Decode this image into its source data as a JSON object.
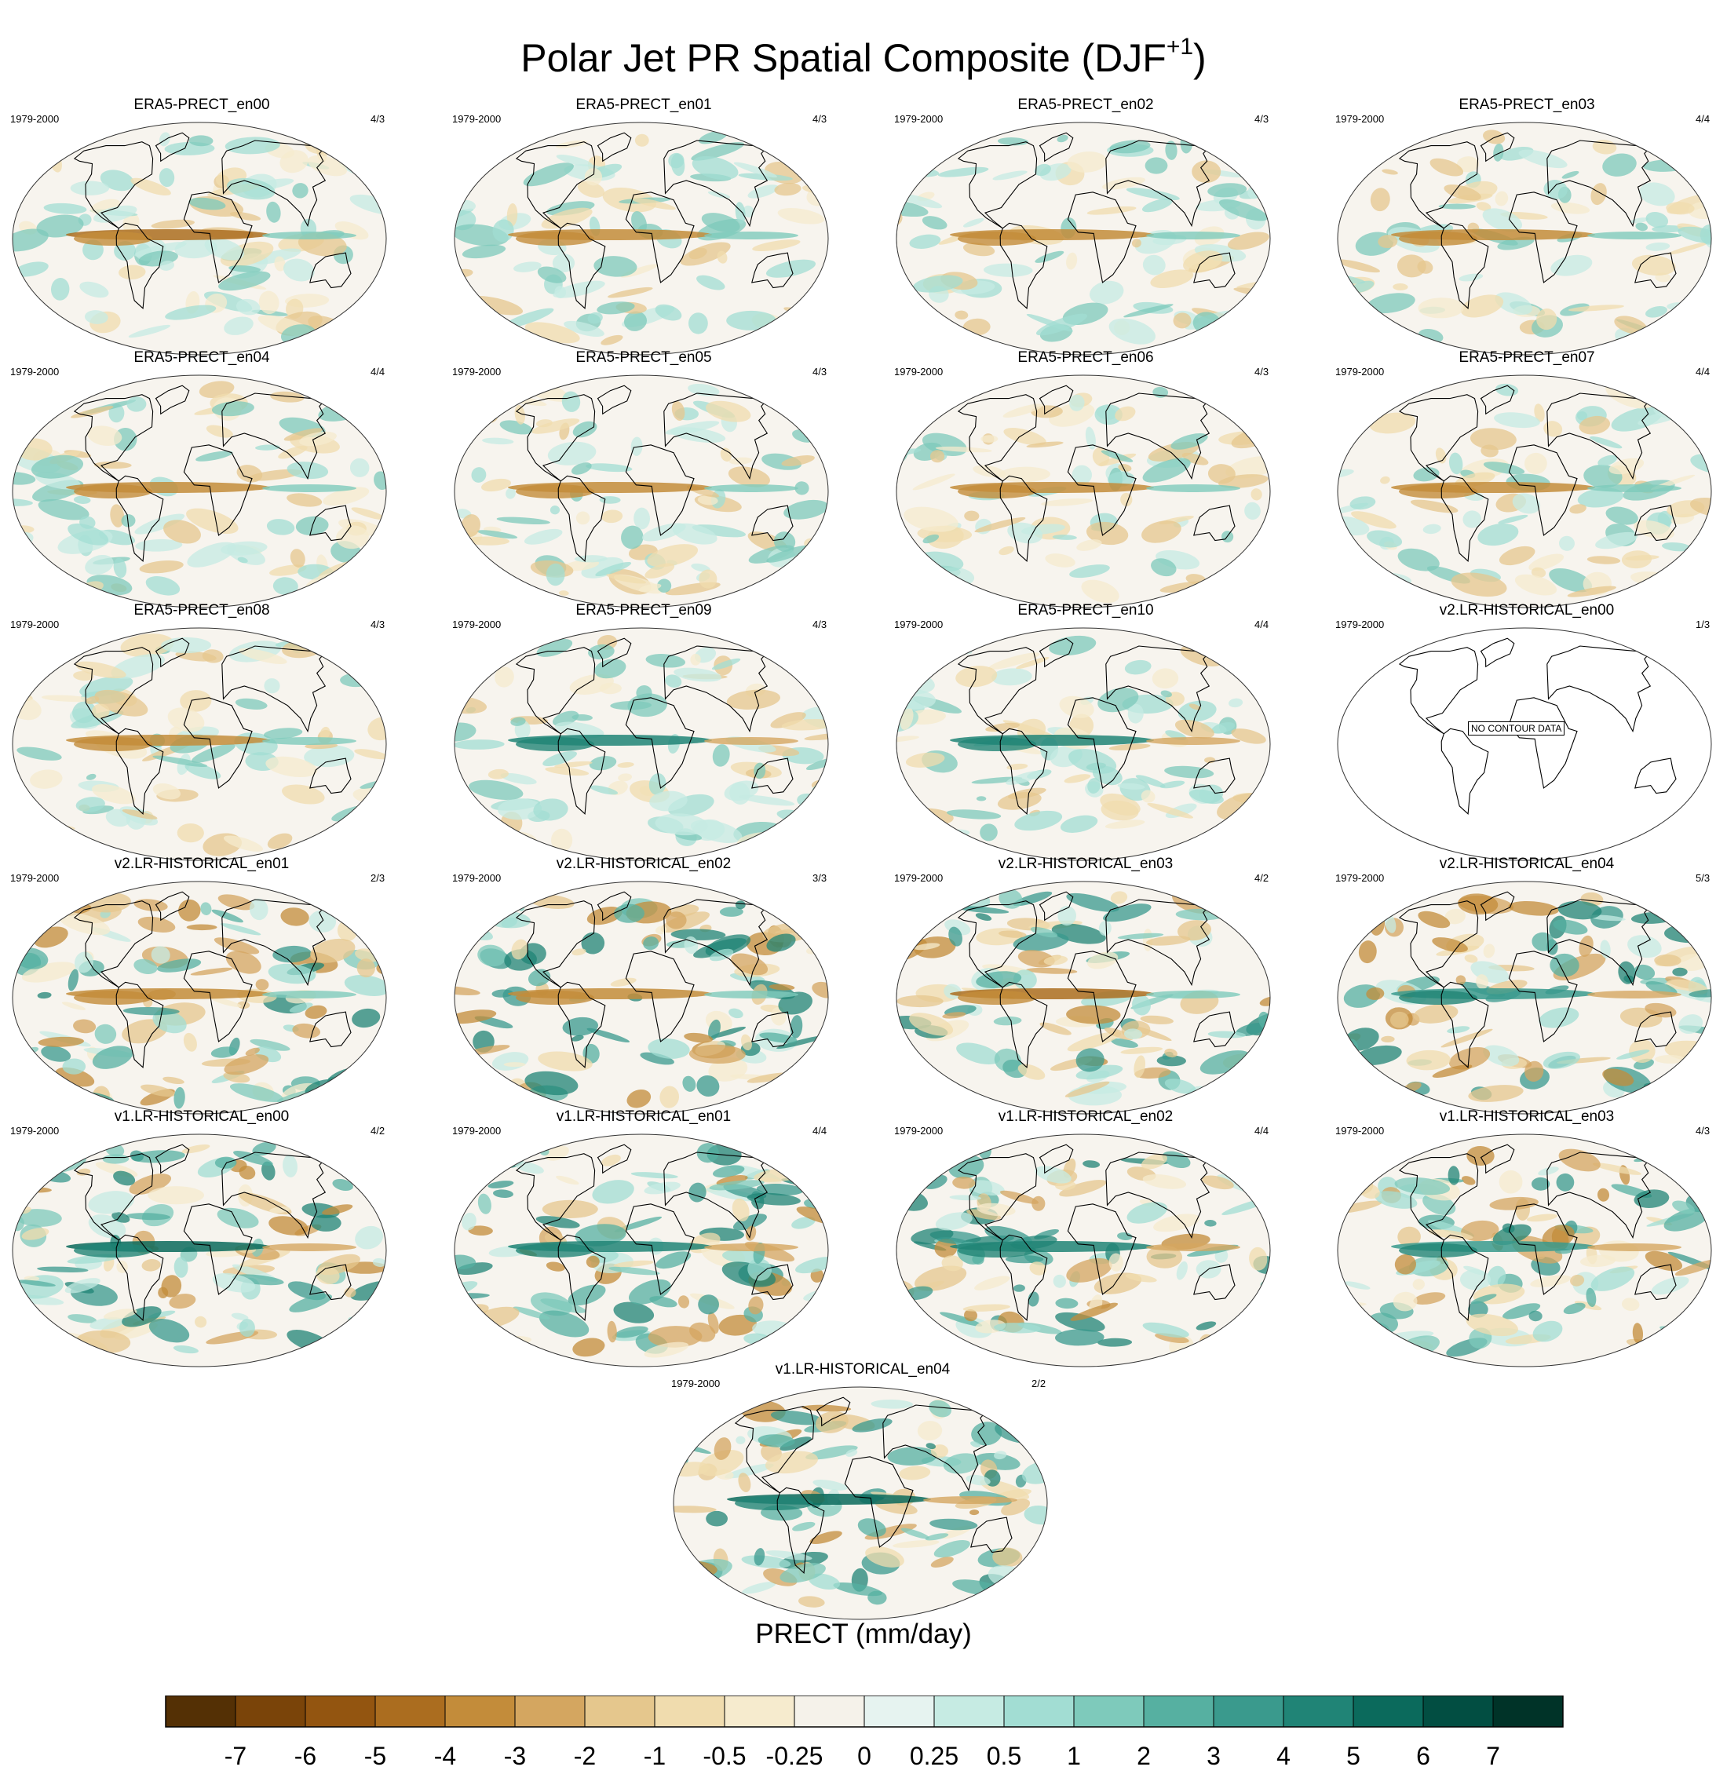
{
  "figure": {
    "title": "Polar Jet PR Spatial Composite (DJF",
    "title_superscript": "+1",
    "title_close": ")"
  },
  "panels": [
    {
      "title": "ERA5-PRECT_en00",
      "period": "1979-2000",
      "ratio": "4/3",
      "pattern": "obs",
      "seed": 1
    },
    {
      "title": "ERA5-PRECT_en01",
      "period": "1979-2000",
      "ratio": "4/3",
      "pattern": "obs",
      "seed": 2
    },
    {
      "title": "ERA5-PRECT_en02",
      "period": "1979-2000",
      "ratio": "4/3",
      "pattern": "obs",
      "seed": 3
    },
    {
      "title": "ERA5-PRECT_en03",
      "period": "1979-2000",
      "ratio": "4/4",
      "pattern": "obs",
      "seed": 4
    },
    {
      "title": "ERA5-PRECT_en04",
      "period": "1979-2000",
      "ratio": "4/4",
      "pattern": "obs",
      "seed": 5
    },
    {
      "title": "ERA5-PRECT_en05",
      "period": "1979-2000",
      "ratio": "4/3",
      "pattern": "obs",
      "seed": 6
    },
    {
      "title": "ERA5-PRECT_en06",
      "period": "1979-2000",
      "ratio": "4/3",
      "pattern": "obs",
      "seed": 7
    },
    {
      "title": "ERA5-PRECT_en07",
      "period": "1979-2000",
      "ratio": "4/4",
      "pattern": "obs",
      "seed": 8
    },
    {
      "title": "ERA5-PRECT_en08",
      "period": "1979-2000",
      "ratio": "4/3",
      "pattern": "obs",
      "seed": 9
    },
    {
      "title": "ERA5-PRECT_en09",
      "period": "1979-2000",
      "ratio": "4/3",
      "pattern": "obs",
      "seed": 10
    },
    {
      "title": "ERA5-PRECT_en10",
      "period": "1979-2000",
      "ratio": "4/4",
      "pattern": "obs",
      "seed": 11
    },
    {
      "title": "v2.LR-HISTORICAL_en00",
      "period": "1979-2000",
      "ratio": "1/3",
      "pattern": "none",
      "seed": 12,
      "note": "NO CONTOUR DATA"
    },
    {
      "title": "v2.LR-HISTORICAL_en01",
      "period": "1979-2000",
      "ratio": "2/3",
      "pattern": "wet",
      "seed": 13
    },
    {
      "title": "v2.LR-HISTORICAL_en02",
      "period": "1979-2000",
      "ratio": "3/3",
      "pattern": "wet",
      "seed": 14
    },
    {
      "title": "v2.LR-HISTORICAL_en03",
      "period": "1979-2000",
      "ratio": "4/2",
      "pattern": "mixed",
      "seed": 15
    },
    {
      "title": "v2.LR-HISTORICAL_en04",
      "period": "1979-2000",
      "ratio": "5/3",
      "pattern": "mixed",
      "seed": 16
    },
    {
      "title": "v1.LR-HISTORICAL_en00",
      "period": "1979-2000",
      "ratio": "4/2",
      "pattern": "wet",
      "seed": 17
    },
    {
      "title": "v1.LR-HISTORICAL_en01",
      "period": "1979-2000",
      "ratio": "4/4",
      "pattern": "wet",
      "seed": 18
    },
    {
      "title": "v1.LR-HISTORICAL_en02",
      "period": "1979-2000",
      "ratio": "4/4",
      "pattern": "wet",
      "seed": 19
    },
    {
      "title": "v1.LR-HISTORICAL_en03",
      "period": "1979-2000",
      "ratio": "4/3",
      "pattern": "mixed",
      "seed": 20
    },
    {
      "title": "v1.LR-HISTORICAL_en04",
      "period": "1979-2000",
      "ratio": "2/2",
      "pattern": "wet",
      "seed": 21
    }
  ],
  "colorbar": {
    "title": "PRECT (mm/day)",
    "tick_labels": [
      "-7",
      "-6",
      "-5",
      "-4",
      "-3",
      "-2",
      "-1",
      "-0.5",
      "-0.25",
      "0",
      "0.25",
      "0.5",
      "1",
      "2",
      "3",
      "4",
      "5",
      "6",
      "7"
    ],
    "colors": [
      "#543005",
      "#7a4409",
      "#935510",
      "#ab6d1f",
      "#c38c3a",
      "#d4a660",
      "#e5c78d",
      "#f0dcae",
      "#f6ebce",
      "#f5f2ea",
      "#e6f3f0",
      "#c6ebe3",
      "#a2ddd3",
      "#7ecabb",
      "#56b0a1",
      "#3a9a8d",
      "#208476",
      "#0b6a5c",
      "#024e42",
      "#003328"
    ]
  }
}
